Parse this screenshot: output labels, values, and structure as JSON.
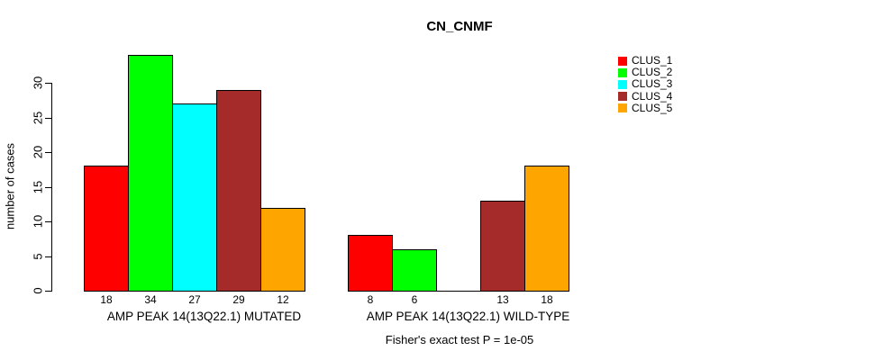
{
  "header": {
    "title": "CN_CNMF"
  },
  "chart_data": {
    "type": "bar",
    "title": "CN_CNMF",
    "ylabel": "number of cases",
    "xlabel": "",
    "ylim": [
      0,
      34
    ],
    "yticks": [
      0,
      5,
      10,
      15,
      20,
      25,
      30
    ],
    "grid": false,
    "legend_position": "top-right",
    "show_bar_value_labels": true,
    "categories": [
      "AMP PEAK 14(13Q22.1) MUTATED",
      "AMP PEAK 14(13Q22.1) WILD-TYPE"
    ],
    "series": [
      {
        "name": "CLUS_1",
        "color": "#ff0000",
        "values": [
          18,
          8
        ]
      },
      {
        "name": "CLUS_2",
        "color": "#00ff00",
        "values": [
          34,
          6
        ]
      },
      {
        "name": "CLUS_3",
        "color": "#00ffff",
        "values": [
          27,
          0
        ]
      },
      {
        "name": "CLUS_4",
        "color": "#a52a2a",
        "values": [
          29,
          13
        ]
      },
      {
        "name": "CLUS_5",
        "color": "#ffa500",
        "values": [
          12,
          18
        ]
      }
    ],
    "annotation": "Fisher's exact test P = 1e-05"
  }
}
